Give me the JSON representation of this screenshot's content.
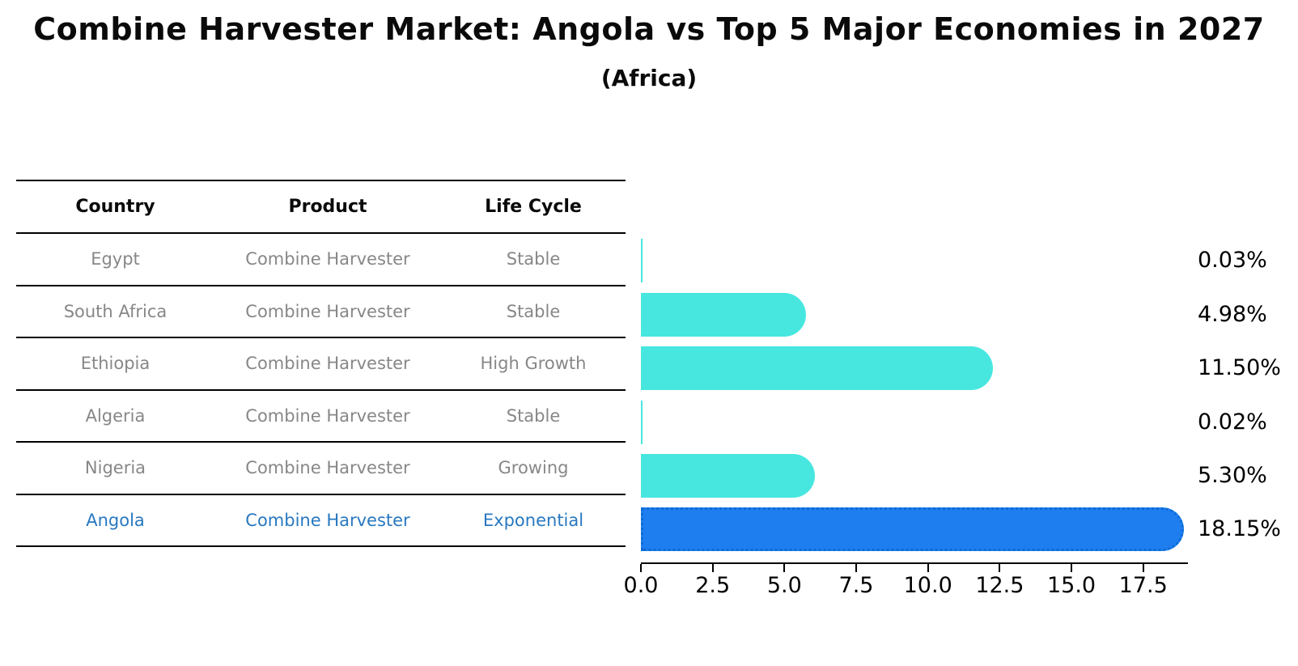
{
  "title": "Combine Harvester Market: Angola vs Top 5 Major Economies in 2027",
  "subtitle": "(Africa)",
  "table": {
    "headers": [
      "Country",
      "Product",
      "Life Cycle"
    ],
    "rows": [
      {
        "country": "Egypt",
        "product": "Combine Harvester",
        "life_cycle": "Stable",
        "highlight": false
      },
      {
        "country": "South Africa",
        "product": "Combine Harvester",
        "life_cycle": "Stable",
        "highlight": false
      },
      {
        "country": "Ethiopia",
        "product": "Combine Harvester",
        "life_cycle": "High Growth",
        "highlight": false
      },
      {
        "country": "Algeria",
        "product": "Combine Harvester",
        "life_cycle": "Stable",
        "highlight": false
      },
      {
        "country": "Nigeria",
        "product": "Combine Harvester",
        "life_cycle": "Growing",
        "highlight": false
      },
      {
        "country": "Angola",
        "product": "Combine Harvester",
        "life_cycle": "Exponential",
        "highlight": true
      }
    ]
  },
  "chart_data": {
    "type": "bar",
    "orientation": "horizontal",
    "categories": [
      "Egypt",
      "South Africa",
      "Ethiopia",
      "Algeria",
      "Nigeria",
      "Angola"
    ],
    "values": [
      0.03,
      4.98,
      11.5,
      0.02,
      5.3,
      18.15
    ],
    "value_labels": [
      "0.03%",
      "4.98%",
      "11.50%",
      "0.02%",
      "5.30%",
      "18.15%"
    ],
    "title": "Combine Harvester Market: Angola vs Top 5 Major Economies in 2027 (Africa)",
    "xlabel": "",
    "ylabel": "",
    "xlim": [
      0,
      19.06
    ],
    "xticks": [
      "0.0",
      "2.5",
      "5.0",
      "7.5",
      "10.0",
      "12.5",
      "15.0",
      "17.5"
    ],
    "grid": false,
    "legend": "none",
    "bar_color": "#47E7E0",
    "highlight_index": 5,
    "highlight_bar_color": "#1E7EF0",
    "highlight_border_color": "#0C6CD6",
    "highlight_text_color": "#2878C0"
  }
}
